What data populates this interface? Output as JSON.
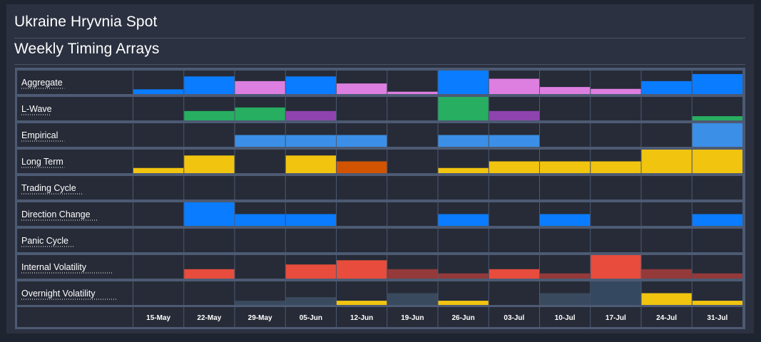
{
  "header": {
    "title": "Ukraine Hryvnia Spot",
    "subtitle": "Weekly Timing Arrays"
  },
  "chart_data": {
    "type": "heatmap",
    "title": "Weekly Timing Arrays",
    "x": [
      "15-May",
      "22-May",
      "29-May",
      "05-Jun",
      "12-Jun",
      "19-Jun",
      "26-Jun",
      "03-Jul",
      "10-Jul",
      "17-Jul",
      "24-Jul",
      "31-Jul"
    ],
    "rows": [
      {
        "label": "Aggregate",
        "values": [
          0.2,
          0.75,
          0.55,
          0.75,
          0.45,
          0.1,
          1.0,
          0.65,
          0.3,
          0.22,
          0.55,
          0.85
        ],
        "colors": [
          "#0a7cff",
          "#0a7cff",
          "#dd7fe0",
          "#0a7cff",
          "#dd7fe0",
          "#dd7fe0",
          "#0a7cff",
          "#dd7fe0",
          "#dd7fe0",
          "#dd7fe0",
          "#0a7cff",
          "#0a7cff"
        ]
      },
      {
        "label": "L-Wave",
        "values": [
          0,
          0.4,
          0.55,
          0.4,
          0,
          0,
          1.0,
          0.4,
          0,
          0,
          0,
          0.18
        ],
        "colors": [
          "#27ae60",
          "#27ae60",
          "#27ae60",
          "#8e44ad",
          "#27ae60",
          "#27ae60",
          "#27ae60",
          "#8e44ad",
          "#27ae60",
          "#27ae60",
          "#27ae60",
          "#27ae60"
        ]
      },
      {
        "label": "Empirical",
        "values": [
          0,
          0,
          0.5,
          0.5,
          0.5,
          0,
          0.5,
          0.5,
          0,
          0,
          0,
          1.0
        ],
        "colors": [
          "#3c8fe6",
          "#3c8fe6",
          "#3c8fe6",
          "#3c8fe6",
          "#3c8fe6",
          "#3c8fe6",
          "#3c8fe6",
          "#3c8fe6",
          "#3c8fe6",
          "#3c8fe6",
          "#3c8fe6",
          "#3c8fe6"
        ]
      },
      {
        "label": "Long Term",
        "values": [
          0.22,
          0.75,
          0,
          0.75,
          0.5,
          0,
          0.22,
          0.5,
          0.5,
          0.5,
          1.0,
          1.0
        ],
        "colors": [
          "#f1c40f",
          "#f1c40f",
          "#f1c40f",
          "#f1c40f",
          "#d35400",
          "#f1c40f",
          "#f1c40f",
          "#f1c40f",
          "#f1c40f",
          "#f1c40f",
          "#f1c40f",
          "#f1c40f"
        ]
      },
      {
        "label": "Trading Cycle",
        "values": [
          0,
          0,
          0,
          0,
          0,
          0,
          0,
          0,
          0,
          0,
          0,
          0
        ],
        "colors": [
          "#0a7cff",
          "#0a7cff",
          "#0a7cff",
          "#0a7cff",
          "#0a7cff",
          "#0a7cff",
          "#0a7cff",
          "#0a7cff",
          "#0a7cff",
          "#0a7cff",
          "#0a7cff",
          "#0a7cff"
        ]
      },
      {
        "label": "Direction Change",
        "values": [
          0,
          1.0,
          0.5,
          0.5,
          0,
          0,
          0.5,
          0,
          0.5,
          0,
          0,
          0.5
        ],
        "colors": [
          "#0a7cff",
          "#0a7cff",
          "#0a7cff",
          "#0a7cff",
          "#0a7cff",
          "#0a7cff",
          "#0a7cff",
          "#0a7cff",
          "#0a7cff",
          "#0a7cff",
          "#0a7cff",
          "#0a7cff"
        ]
      },
      {
        "label": "Panic Cycle",
        "values": [
          0,
          0,
          0,
          0,
          0,
          0,
          0,
          0,
          0,
          0,
          0,
          0
        ],
        "colors": [
          "#e74c3c",
          "#e74c3c",
          "#e74c3c",
          "#e74c3c",
          "#e74c3c",
          "#e74c3c",
          "#e74c3c",
          "#e74c3c",
          "#e74c3c",
          "#e74c3c",
          "#e74c3c",
          "#e74c3c"
        ]
      },
      {
        "label": "Internal Volatility",
        "values": [
          0,
          0.4,
          0,
          0.6,
          0.78,
          0.4,
          0.22,
          0.4,
          0.22,
          1.0,
          0.4,
          0.22
        ],
        "colors": [
          "#e74c3c",
          "#e74c3c",
          "#e74c3c",
          "#e74c3c",
          "#e74c3c",
          "#943a3a",
          "#943a3a",
          "#e74c3c",
          "#943a3a",
          "#e74c3c",
          "#943a3a",
          "#943a3a"
        ]
      },
      {
        "label": "Overnight Volatility",
        "values": [
          0,
          0,
          0.18,
          0.33,
          0.18,
          0.5,
          0.18,
          0,
          0.5,
          1.0,
          0.5,
          0.18
        ],
        "colors": [
          "#3a4a5e",
          "#3a4a5e",
          "#3a4a5e",
          "#3a4a5e",
          "#f1c40f",
          "#3a4a5e",
          "#f1c40f",
          "#3a4a5e",
          "#3a4a5e",
          "#34485f",
          "#f1c40f",
          "#f1c40f"
        ]
      }
    ],
    "xlabel": "",
    "ylabel": "",
    "grid": true
  }
}
